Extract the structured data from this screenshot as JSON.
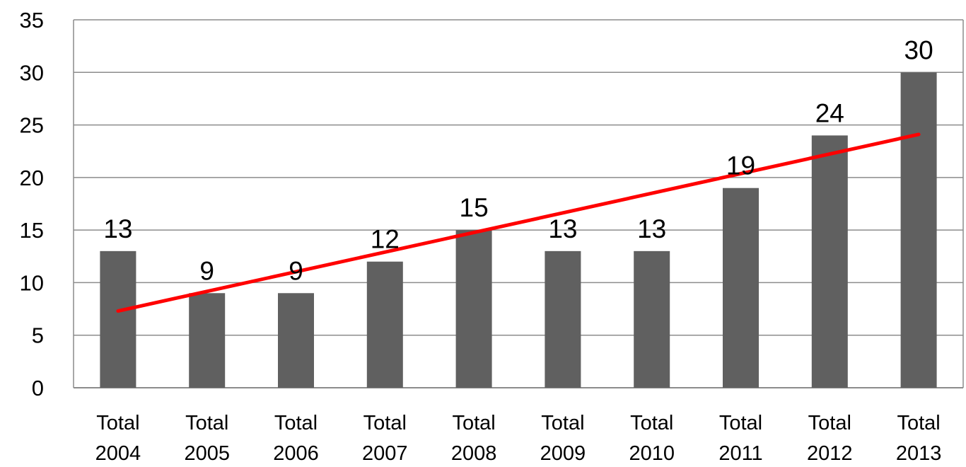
{
  "chart_data": {
    "type": "bar",
    "title": "",
    "xlabel": "",
    "ylabel": "",
    "categories": [
      [
        "Total",
        "2004"
      ],
      [
        "Total",
        "2005"
      ],
      [
        "Total",
        "2006"
      ],
      [
        "Total",
        "2007"
      ],
      [
        "Total",
        "2008"
      ],
      [
        "Total",
        "2009"
      ],
      [
        "Total",
        "2010"
      ],
      [
        "Total",
        "2011"
      ],
      [
        "Total",
        "2012"
      ],
      [
        "Total",
        "2013"
      ]
    ],
    "values": [
      13,
      9,
      9,
      12,
      15,
      13,
      13,
      19,
      24,
      30
    ],
    "data_labels": [
      "13",
      "9",
      "9",
      "12",
      "15",
      "13",
      "13",
      "19",
      "24",
      "30"
    ],
    "ylim": [
      0,
      35
    ],
    "yticks": [
      0,
      5,
      10,
      15,
      20,
      25,
      30,
      35
    ],
    "ytick_labels": [
      "0",
      "5",
      "10",
      "15",
      "20",
      "25",
      "30",
      "35"
    ],
    "grid": true,
    "legend": "none",
    "trendline": {
      "type": "linear",
      "start_value": 7.3,
      "end_value": 24.1
    },
    "colors": {
      "bar": "#606060",
      "trendline": "#ff0000",
      "grid": "#8c8c8c",
      "text": "#000000"
    }
  }
}
